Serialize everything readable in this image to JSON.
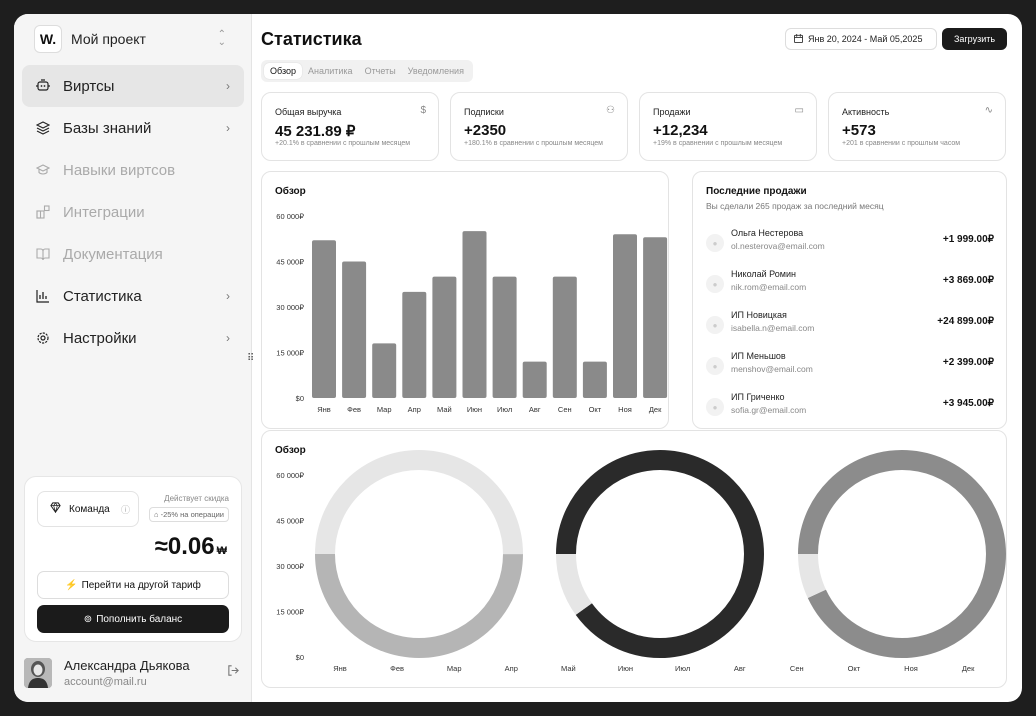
{
  "sidebar": {
    "logo": "W.",
    "project_name": "Мой проект",
    "items": [
      {
        "label": "Виртсы",
        "icon": "bot-icon",
        "active": true,
        "disabled": false,
        "chevron": true
      },
      {
        "label": "Базы знаний",
        "icon": "layers-icon",
        "active": false,
        "disabled": false,
        "chevron": true
      },
      {
        "label": "Навыки виртсов",
        "icon": "graduation-cap-icon",
        "active": false,
        "disabled": true,
        "chevron": false
      },
      {
        "label": "Интеграции",
        "icon": "blocks-icon",
        "active": false,
        "disabled": true,
        "chevron": false
      },
      {
        "label": "Документация",
        "icon": "book-icon",
        "active": false,
        "disabled": true,
        "chevron": false
      },
      {
        "label": "Статистика",
        "icon": "bar-chart-icon",
        "active": false,
        "disabled": false,
        "chevron": true
      },
      {
        "label": "Настройки",
        "icon": "gear-icon",
        "active": false,
        "disabled": false,
        "chevron": true
      }
    ],
    "plan": {
      "team_label": "Команда",
      "discount_label": "Действует скидка",
      "discount_badge": "-25% на операции",
      "balance": "≈0.06",
      "currency": "₩",
      "change_plan_label": "Перейти на другой тариф",
      "topup_label": "Пополнить баланс"
    },
    "user": {
      "name": "Александра Дьякова",
      "email": "account@mail.ru"
    }
  },
  "header": {
    "title": "Статистика",
    "date_range": "Янв 20, 2024 - Май 05,2025",
    "load_label": "Загрузить",
    "tabs": [
      "Обзор",
      "Аналитика",
      "Отчеты",
      "Уведомления"
    ],
    "active_tab": "Обзор"
  },
  "kpis": [
    {
      "label": "Общая выручка",
      "icon": "dollar-icon",
      "value": "45 231.89 ₽",
      "sub": "+20.1% в сравнении с прошлым месяцем"
    },
    {
      "label": "Подписки",
      "icon": "users-icon",
      "value": "+2350",
      "sub": "+180.1% в сравнении с прошлым месяцем"
    },
    {
      "label": "Продажи",
      "icon": "credit-card-icon",
      "value": "+12,234",
      "sub": "+19% в сравнении с прошлым месяцем"
    },
    {
      "label": "Активность",
      "icon": "activity-icon",
      "value": "+573",
      "sub": "+201 в сравнении с прошлым часом"
    }
  ],
  "overview": {
    "title": "Обзор"
  },
  "sales": {
    "title": "Последние продажи",
    "subtitle": "Вы сделали 265 продаж за последний месяц",
    "items": [
      {
        "name": "Ольга Нестерова",
        "email": "ol.nesterova@email.com",
        "amount": "+1 999.00₽"
      },
      {
        "name": "Николай Ромин",
        "email": "nik.rom@email.com",
        "amount": "+3 869.00₽"
      },
      {
        "name": "ИП Новицкая",
        "email": "isabella.n@email.com",
        "amount": "+24 899.00₽"
      },
      {
        "name": "ИП Меньшов",
        "email": "menshov@email.com",
        "amount": "+2 399.00₽"
      },
      {
        "name": "ИП Гриченко",
        "email": "sofia.gr@email.com",
        "amount": "+3 945.00₽"
      }
    ]
  },
  "overview2": {
    "title": "Обзор"
  },
  "colors": {
    "bar": "#8a8a8a",
    "donut_light": "#e6e6e6",
    "donut_mid": "#b5b5b5",
    "donut_dark": "#2a2a2a",
    "donut_gray": "#8c8c8c"
  },
  "chart_data": [
    {
      "type": "bar",
      "categories": [
        "Янв",
        "Фев",
        "Мар",
        "Апр",
        "Май",
        "Июн",
        "Июл",
        "Авг",
        "Сен",
        "Окт",
        "Ноя",
        "Дек"
      ],
      "values": [
        52000,
        45000,
        18000,
        35000,
        40000,
        55000,
        40000,
        12000,
        40000,
        12000,
        54000,
        53000
      ],
      "yticks": [
        "60 000₽",
        "45 000₽",
        "30 000₽",
        "15 000₽",
        "$0"
      ],
      "ylim": [
        0,
        60000
      ],
      "grid": false
    },
    {
      "type": "pie",
      "variant": "donut",
      "yticks": [
        "60 000₽",
        "45 000₽",
        "30 000₽",
        "15 000₽",
        "$0"
      ],
      "xticks": [
        "Янв",
        "Фев",
        "Мар",
        "Апр",
        "Май",
        "Июн",
        "Июл",
        "Авг",
        "Сен",
        "Окт",
        "Ноя",
        "Дек"
      ],
      "donuts": [
        {
          "segments": [
            {
              "value": 50,
              "color": "#e6e6e6"
            },
            {
              "value": 50,
              "color": "#b5b5b5"
            }
          ]
        },
        {
          "segments": [
            {
              "value": 90,
              "color": "#2a2a2a"
            },
            {
              "value": 10,
              "color": "#e6e6e6"
            }
          ]
        },
        {
          "segments": [
            {
              "value": 93,
              "color": "#8c8c8c"
            },
            {
              "value": 7,
              "color": "#e6e6e6"
            }
          ]
        }
      ]
    }
  ]
}
